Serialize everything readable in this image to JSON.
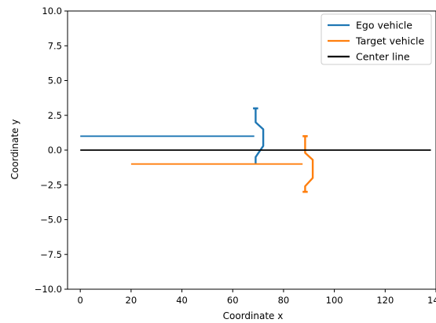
{
  "chart_data": {
    "type": "line",
    "title": "",
    "xlabel": "Coordinate x",
    "ylabel": "Coordinate y",
    "xlim": [
      -5,
      140
    ],
    "ylim": [
      -10,
      10
    ],
    "xticks": [
      0,
      20,
      40,
      60,
      80,
      100,
      120,
      140
    ],
    "yticks": [
      -10,
      -7.5,
      -5,
      -2.5,
      0,
      2.5,
      5,
      7.5,
      10
    ],
    "ytick_labels": [
      "−10.0",
      "−7.5",
      "−5.0",
      "−2.5",
      "0.0",
      "2.5",
      "5.0",
      "7.5",
      "10.0"
    ],
    "grid": false,
    "legend_position": "top-right",
    "series": [
      {
        "name": "Ego vehicle",
        "color": "#1f77b4",
        "path": {
          "x": [
            0,
            68.5
          ],
          "y": [
            1,
            1
          ]
        },
        "vehicle_outline": {
          "x": [
            69,
            69,
            72,
            72,
            69,
            69
          ],
          "y": [
            3,
            2,
            1.5,
            0.3,
            -0.5,
            -1
          ]
        },
        "end_caps": [
          {
            "x": [
              68,
              70
            ],
            "y": [
              3,
              3
            ]
          }
        ]
      },
      {
        "name": "Target vehicle",
        "color": "#ff7f0e",
        "path": {
          "x": [
            20,
            87.5
          ],
          "y": [
            -1,
            -1
          ]
        },
        "vehicle_outline": {
          "x": [
            88.5,
            88.5,
            91.5,
            91.5,
            88.5,
            88.5
          ],
          "y": [
            1,
            -0.2,
            -0.7,
            -2.0,
            -2.6,
            -3
          ]
        },
        "end_caps": [
          {
            "x": [
              87.5,
              89.5
            ],
            "y": [
              1,
              1
            ]
          },
          {
            "x": [
              87.5,
              89.5
            ],
            "y": [
              -3,
              -3
            ]
          }
        ]
      },
      {
        "name": "Center line",
        "color": "#000000",
        "path": {
          "x": [
            0,
            138
          ],
          "y": [
            0,
            0
          ]
        }
      }
    ]
  }
}
